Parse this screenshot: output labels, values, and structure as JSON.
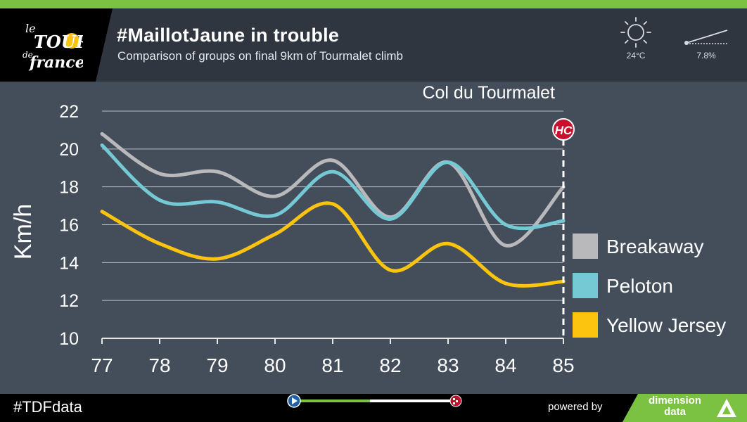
{
  "header": {
    "title": "#MaillotJaune in trouble",
    "subtitle": "Comparison of groups on final 9km of Tourmalet climb",
    "temperature": "24°C",
    "gradient": "7.8%",
    "logo_text": "le Tour de France"
  },
  "footer": {
    "hashtag": "#TDFdata",
    "powered_by": "powered by",
    "brand_line1": "dimension",
    "brand_line2": "data"
  },
  "colors": {
    "accent_green": "#7bc142",
    "breakaway": "#b9b9bb",
    "peloton": "#74c9d4",
    "yellow_jersey": "#fcc40e"
  },
  "chart_data": {
    "type": "line",
    "ylabel": "Km/h",
    "xlabel": "",
    "x": [
      77,
      78,
      79,
      80,
      81,
      82,
      83,
      84,
      85
    ],
    "xlim": [
      77,
      85
    ],
    "ylim": [
      10,
      22
    ],
    "yticks": [
      10,
      12,
      14,
      16,
      18,
      20,
      22
    ],
    "grid": true,
    "legend_position": "right",
    "annotation": {
      "label": "Col du Tourmalet",
      "badge": "HC",
      "x": 85
    },
    "series": [
      {
        "name": "Breakaway",
        "color": "#b9b9bb",
        "values": [
          20.8,
          18.7,
          18.8,
          17.5,
          19.4,
          16.4,
          19.3,
          14.9,
          18.0
        ]
      },
      {
        "name": "Peloton",
        "color": "#74c9d4",
        "values": [
          20.2,
          17.3,
          17.2,
          16.5,
          18.8,
          16.3,
          19.3,
          16.0,
          16.2
        ]
      },
      {
        "name": "Yellow Jersey",
        "color": "#fcc40e",
        "values": [
          16.7,
          15.0,
          14.2,
          15.5,
          17.1,
          13.6,
          15.0,
          12.9,
          13.0
        ]
      }
    ]
  }
}
